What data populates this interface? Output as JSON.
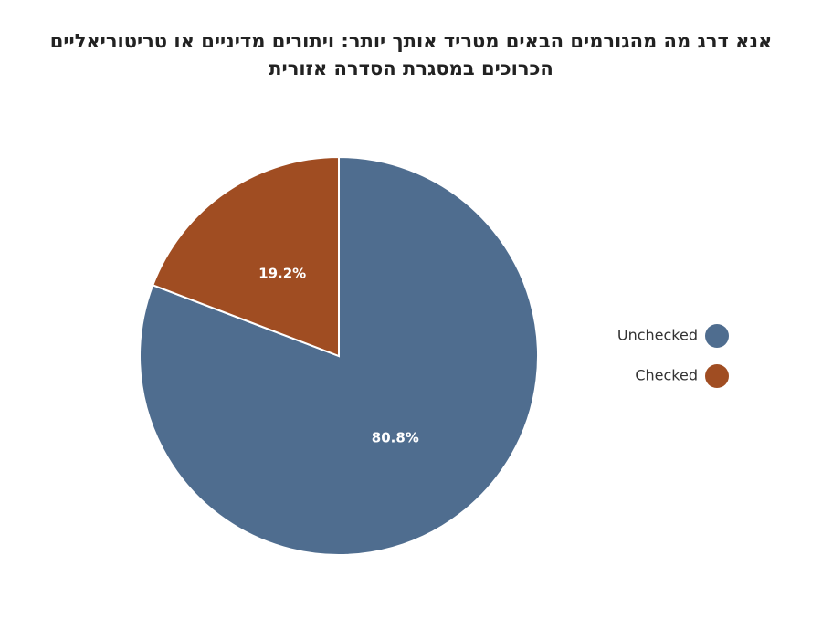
{
  "chart_data": {
    "type": "pie",
    "title_lines": [
      "אנא דרג מה מהגורמים הבאים מטריד אותך יותר:  ויתורים מדיניים או טריטוריאליים",
      "הכרוכים במסגרת הסדרה אזורית"
    ],
    "labels": [
      "Unchecked",
      "Checked"
    ],
    "values": [
      80.8,
      19.2
    ],
    "value_labels": [
      "80.8%",
      "19.2%"
    ],
    "colors": [
      "#4f6d8f",
      "#a04d22"
    ],
    "legend_position": "right",
    "start_angle_deg": 0,
    "direction": "clockwise"
  }
}
